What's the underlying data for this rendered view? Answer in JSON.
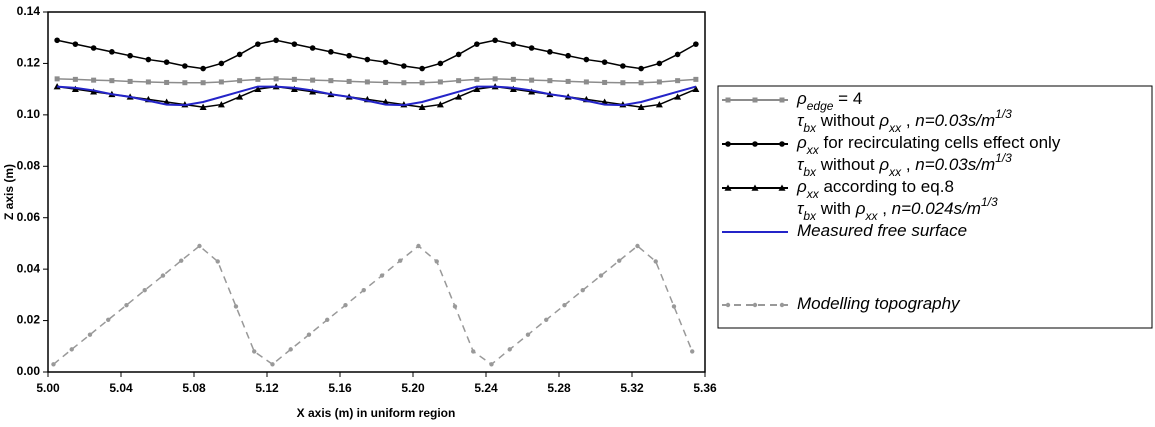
{
  "chart_data": {
    "type": "line",
    "xlabel": "X axis (m) in uniform region",
    "ylabel": "Z axis (m)",
    "xlim": [
      5.0,
      5.36
    ],
    "ylim": [
      0,
      0.14
    ],
    "xticks": [
      {
        "value": 5.0,
        "label": "5.00"
      },
      5.04,
      5.08,
      5.12,
      5.16,
      {
        "value": 5.2,
        "label": "5.20"
      },
      5.24,
      5.28,
      5.32,
      5.36
    ],
    "yticks": [
      {
        "value": 0,
        "label": "0.00"
      },
      0.02,
      0.04,
      0.06,
      0.08,
      {
        "value": 0.1,
        "label": "0.10"
      },
      0.12,
      0.14
    ],
    "x": [
      5.005,
      5.015,
      5.025,
      5.035,
      5.045,
      5.055,
      5.065,
      5.075,
      5.085,
      5.095,
      5.105,
      5.115,
      5.125,
      5.135,
      5.145,
      5.155,
      5.165,
      5.175,
      5.185,
      5.195,
      5.205,
      5.215,
      5.225,
      5.235,
      5.245,
      5.255,
      5.265,
      5.275,
      5.285,
      5.295,
      5.305,
      5.315,
      5.325,
      5.335,
      5.345,
      5.355
    ],
    "series": [
      {
        "name": [
          [
            {
              "t": "ρ",
              "s": "i"
            },
            {
              "t": "edge",
              "s": "isub"
            },
            {
              "t": " = 4"
            }
          ],
          [
            {
              "t": "τ",
              "s": "i"
            },
            {
              "t": "bx",
              "s": "isub"
            },
            {
              "t": " without "
            },
            {
              "t": "ρ",
              "s": "i"
            },
            {
              "t": "xx",
              "s": "isub"
            },
            {
              "t": " , "
            },
            {
              "t": "n=0.03s/m",
              "s": "i"
            },
            {
              "t": "1/3",
              "s": "isup"
            }
          ]
        ],
        "color": "#8c8c8c",
        "marker": "square",
        "dash": false,
        "values": [
          0.114,
          0.1138,
          0.1135,
          0.1133,
          0.113,
          0.1128,
          0.1126,
          0.1125,
          0.1125,
          0.1128,
          0.1133,
          0.1138,
          0.114,
          0.1138,
          0.1135,
          0.1133,
          0.113,
          0.1128,
          0.1126,
          0.1125,
          0.1125,
          0.1128,
          0.1133,
          0.1138,
          0.114,
          0.1138,
          0.1135,
          0.1133,
          0.113,
          0.1128,
          0.1126,
          0.1125,
          0.1125,
          0.1128,
          0.1133,
          0.1138
        ]
      },
      {
        "name": [
          [
            {
              "t": "ρ",
              "s": "i"
            },
            {
              "t": "xx",
              "s": "isub"
            },
            {
              "t": " for recirculating cells effect only"
            }
          ],
          [
            {
              "t": "τ",
              "s": "i"
            },
            {
              "t": "bx",
              "s": "isub"
            },
            {
              "t": " without "
            },
            {
              "t": "ρ",
              "s": "i"
            },
            {
              "t": "xx",
              "s": "isub"
            },
            {
              "t": " , "
            },
            {
              "t": "n=0.03s/m",
              "s": "i"
            },
            {
              "t": "1/3",
              "s": "isup"
            }
          ]
        ],
        "color": "#000000",
        "marker": "circle",
        "dash": false,
        "values": [
          0.129,
          0.1275,
          0.126,
          0.1245,
          0.123,
          0.1215,
          0.1205,
          0.119,
          0.118,
          0.12,
          0.1235,
          0.1275,
          0.129,
          0.1275,
          0.126,
          0.1245,
          0.123,
          0.1215,
          0.1205,
          0.119,
          0.118,
          0.12,
          0.1235,
          0.1275,
          0.129,
          0.1275,
          0.126,
          0.1245,
          0.123,
          0.1215,
          0.1205,
          0.119,
          0.118,
          0.12,
          0.1235,
          0.1275
        ]
      },
      {
        "name": [
          [
            {
              "t": "ρ",
              "s": "i"
            },
            {
              "t": "xx",
              "s": "isub"
            },
            {
              "t": " according to eq.8"
            }
          ],
          [
            {
              "t": "τ",
              "s": "i"
            },
            {
              "t": "bx",
              "s": "isub"
            },
            {
              "t": " with "
            },
            {
              "t": "ρ",
              "s": "i"
            },
            {
              "t": "xx",
              "s": "isub"
            },
            {
              "t": " , "
            },
            {
              "t": "n=0.024s/m",
              "s": "i"
            },
            {
              "t": "1/3",
              "s": "isup"
            }
          ]
        ],
        "color": "#000000",
        "marker": "triangle",
        "dash": false,
        "values": [
          0.111,
          0.11,
          0.109,
          0.108,
          0.107,
          0.106,
          0.105,
          0.104,
          0.103,
          0.104,
          0.107,
          0.11,
          0.111,
          0.11,
          0.109,
          0.108,
          0.107,
          0.106,
          0.105,
          0.104,
          0.103,
          0.104,
          0.107,
          0.11,
          0.111,
          0.11,
          0.109,
          0.108,
          0.107,
          0.106,
          0.105,
          0.104,
          0.103,
          0.104,
          0.107,
          0.11
        ]
      },
      {
        "name": [
          [
            {
              "t": "Measured free surface",
              "s": "i"
            }
          ]
        ],
        "color": "#2424c8",
        "marker": "none",
        "dash": false,
        "values": [
          0.111,
          0.1105,
          0.1095,
          0.108,
          0.107,
          0.1055,
          0.104,
          0.1038,
          0.105,
          0.107,
          0.109,
          0.111,
          0.111,
          0.1105,
          0.1095,
          0.108,
          0.107,
          0.1055,
          0.104,
          0.1038,
          0.105,
          0.107,
          0.109,
          0.111,
          0.111,
          0.1105,
          0.1095,
          0.108,
          0.107,
          0.1055,
          0.104,
          0.1038,
          0.105,
          0.107,
          0.109,
          0.111
        ]
      },
      {
        "name": [
          [
            {
              "t": "Modelling topography",
              "s": "i"
            }
          ]
        ],
        "color": "#999999",
        "marker": "dot",
        "dash": true,
        "x": [
          5.003,
          5.013,
          5.023,
          5.033,
          5.043,
          5.053,
          5.063,
          5.073,
          5.083,
          5.093,
          5.103,
          5.113,
          5.123,
          5.133,
          5.143,
          5.153,
          5.163,
          5.173,
          5.183,
          5.193,
          5.203,
          5.213,
          5.223,
          5.233,
          5.243,
          5.253,
          5.263,
          5.273,
          5.283,
          5.293,
          5.303,
          5.313,
          5.323,
          5.333,
          5.343,
          5.353
        ],
        "values": [
          0.003,
          0.0088,
          0.0145,
          0.0203,
          0.026,
          0.0318,
          0.0375,
          0.0433,
          0.049,
          0.043,
          0.0255,
          0.008,
          0.003,
          0.0088,
          0.0145,
          0.0203,
          0.026,
          0.0318,
          0.0375,
          0.0433,
          0.049,
          0.043,
          0.0255,
          0.008,
          0.003,
          0.0088,
          0.0145,
          0.0203,
          0.026,
          0.0318,
          0.0375,
          0.0433,
          0.049,
          0.043,
          0.0255,
          0.008
        ]
      }
    ]
  }
}
